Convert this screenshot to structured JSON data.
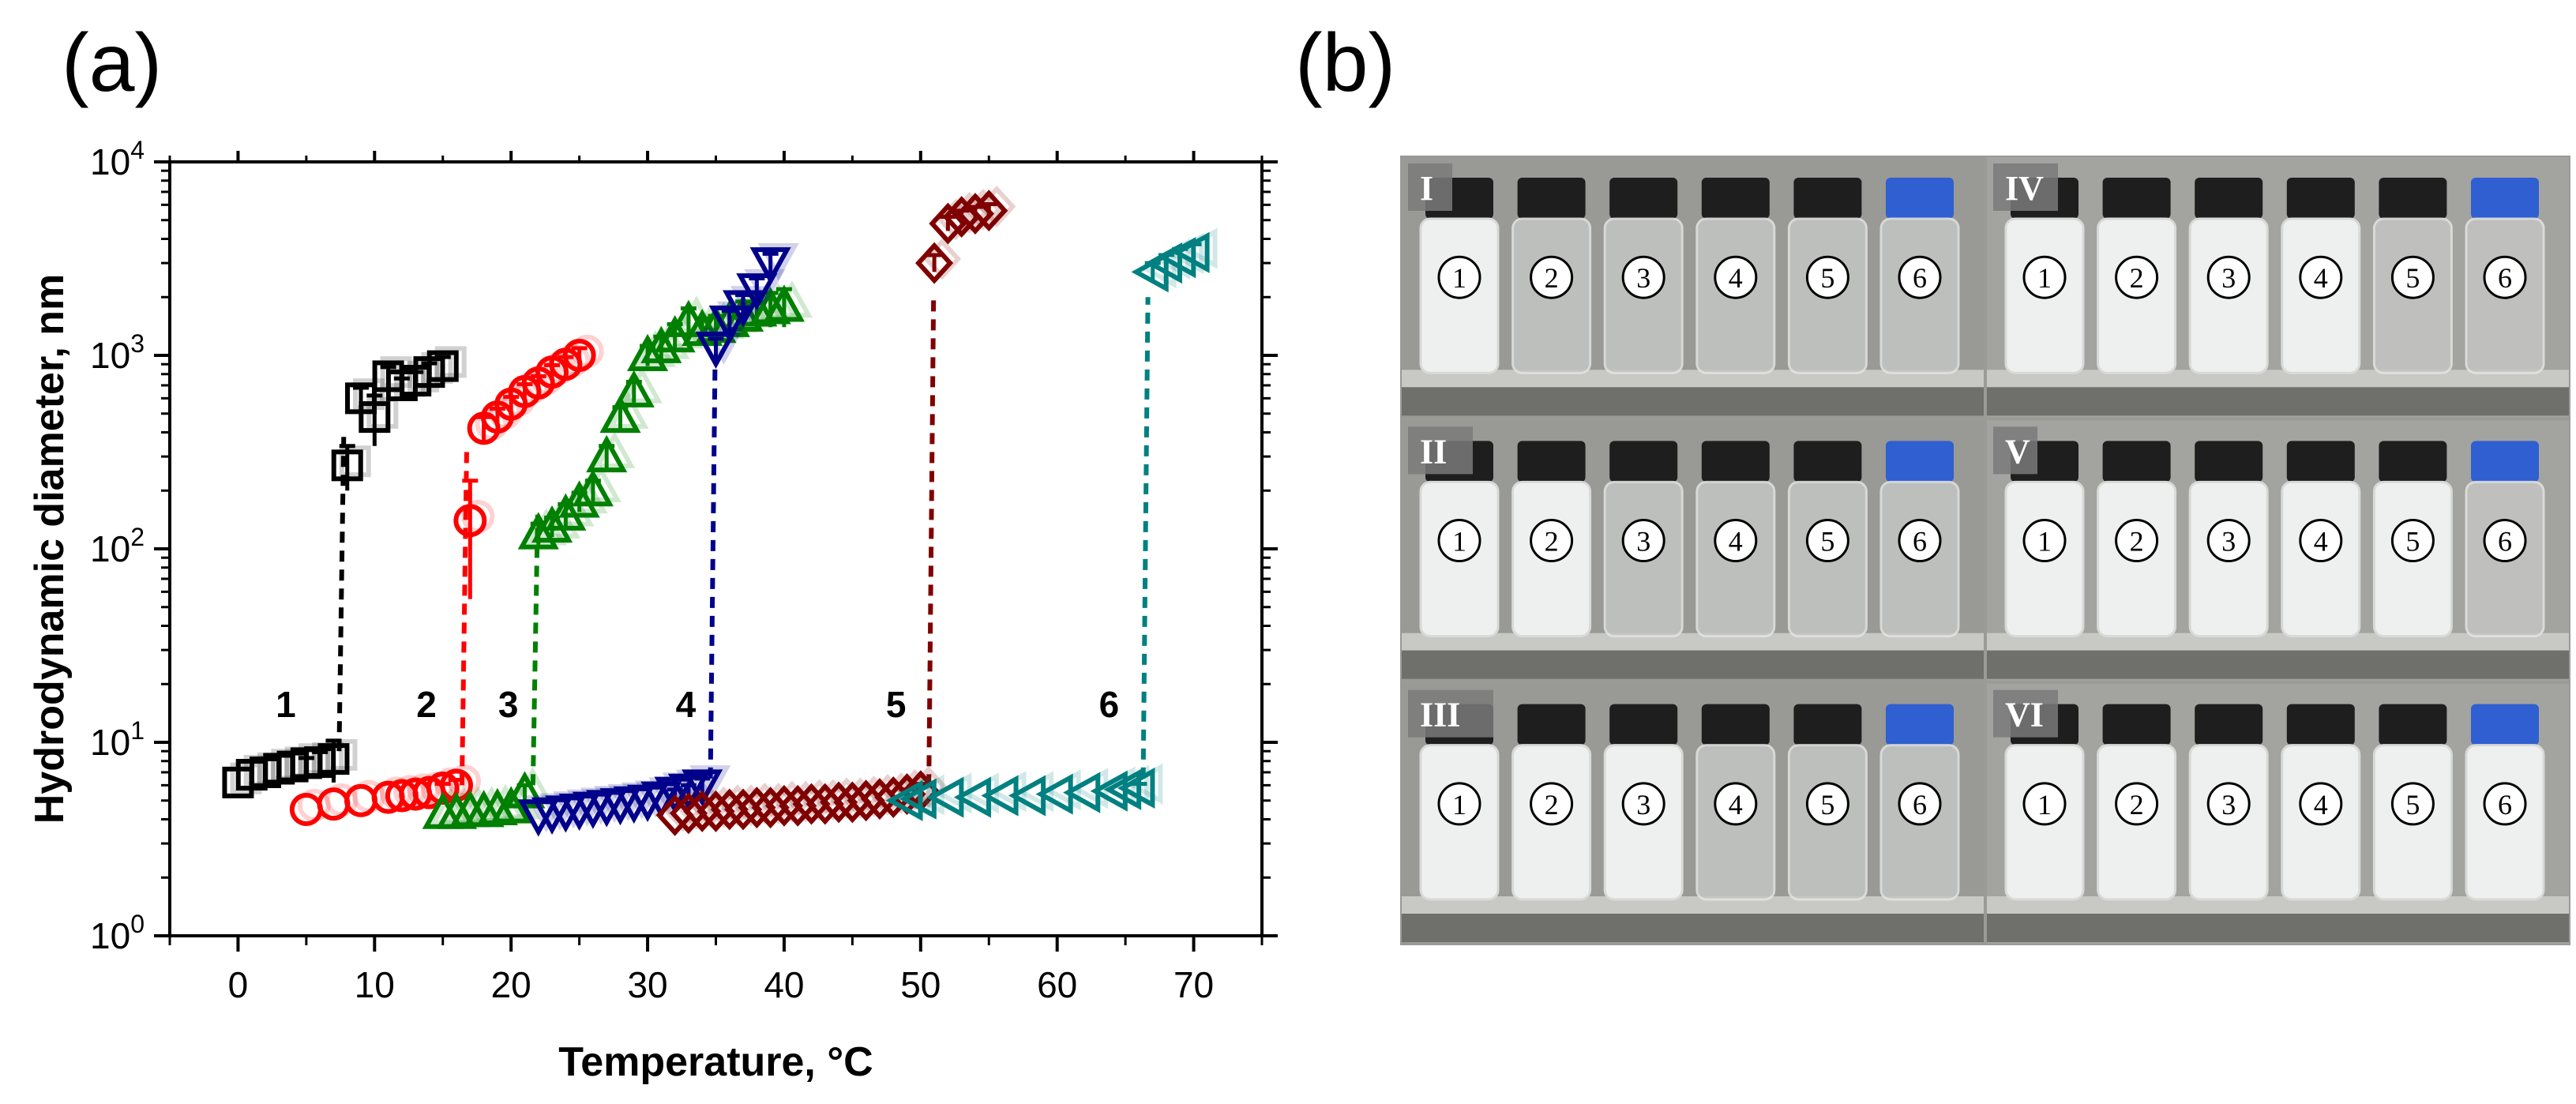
{
  "panel_a": {
    "label": "(a)",
    "chart_data": {
      "type": "scatter",
      "title": "",
      "xlabel": "Temperature, °C",
      "ylabel": "Hydrodynamic diameter, nm",
      "xlim": [
        -5,
        75
      ],
      "x_ticks": [
        0,
        10,
        20,
        30,
        40,
        50,
        60,
        70
      ],
      "y_scale": "log",
      "ylim": [
        1,
        10000
      ],
      "y_ticks": [
        {
          "value": 1,
          "base": "10",
          "exp": "0"
        },
        {
          "value": 10,
          "base": "10",
          "exp": "1"
        },
        {
          "value": 100,
          "base": "10",
          "exp": "2"
        },
        {
          "value": 1000,
          "base": "10",
          "exp": "3"
        },
        {
          "value": 10000,
          "base": "10",
          "exp": "4"
        }
      ],
      "series": [
        {
          "name": "1",
          "color": "#000000",
          "marker": "square",
          "label_at": [
            3.5,
            13.5
          ],
          "x": [
            0,
            1,
            2,
            3,
            4,
            5,
            6,
            7,
            8,
            9,
            10,
            11,
            12,
            13,
            14,
            15
          ],
          "y": [
            6.2,
            6.8,
            7.0,
            7.3,
            7.5,
            7.8,
            7.9,
            8.2,
            270,
            600,
            480,
            780,
            700,
            740,
            820,
            880
          ],
          "err": [
            0,
            0,
            0,
            0,
            0,
            0.5,
            1.0,
            2.0,
            70,
            80,
            140,
            90,
            60,
            80,
            90,
            100
          ],
          "jump": [
            7.4,
            9,
            400
          ]
        },
        {
          "name": "2",
          "color": "#ff0000",
          "marker": "circle",
          "label_at": [
            13.8,
            13.5
          ],
          "x": [
            5,
            7,
            9,
            11,
            12,
            13,
            14,
            15,
            16,
            17,
            18,
            19,
            20,
            21,
            22,
            23,
            24,
            25
          ],
          "y": [
            4.5,
            4.8,
            5.0,
            5.2,
            5.3,
            5.4,
            5.5,
            5.8,
            6.0,
            140,
            420,
            480,
            560,
            650,
            720,
            820,
            900,
            1000
          ],
          "err": [
            0,
            0,
            0,
            0,
            0,
            0,
            0,
            0.3,
            0.4,
            85,
            60,
            50,
            50,
            60,
            60,
            70,
            80,
            90
          ],
          "jump": [
            16.4,
            6,
            320
          ]
        },
        {
          "name": "3",
          "color": "#008000",
          "marker": "triangle-up",
          "label_at": [
            19.8,
            13.5
          ],
          "x": [
            15,
            16,
            17,
            18,
            19,
            20,
            21,
            22,
            23,
            24,
            25,
            26,
            27,
            28,
            29,
            30,
            31,
            32,
            33,
            34,
            35,
            36,
            37,
            38,
            39,
            40
          ],
          "y": [
            4.3,
            4.3,
            4.4,
            4.4,
            4.5,
            4.6,
            5.5,
            120,
            130,
            150,
            175,
            200,
            300,
            480,
            650,
            1000,
            1100,
            1250,
            1500,
            1350,
            1400,
            1500,
            1600,
            1700,
            1750,
            1800
          ],
          "err": [
            0,
            0,
            0,
            0,
            0,
            0,
            0.5,
            15,
            15,
            20,
            20,
            25,
            40,
            60,
            80,
            120,
            150,
            200,
            250,
            200,
            200,
            250,
            300,
            350,
            350,
            400
          ],
          "jump": [
            21.6,
            6,
            150
          ]
        },
        {
          "name": "4",
          "color": "#00008b",
          "marker": "triangle-down",
          "label_at": [
            32.8,
            13.5
          ],
          "x": [
            22,
            23,
            24,
            25,
            26,
            27,
            28,
            29,
            30,
            31,
            32,
            33,
            34,
            35,
            36,
            37,
            38,
            39
          ],
          "y": [
            4.2,
            4.3,
            4.4,
            4.5,
            4.6,
            4.7,
            4.8,
            4.9,
            5.0,
            5.2,
            5.5,
            5.7,
            6.0,
            1100,
            1500,
            1800,
            2200,
            3000
          ],
          "err": [
            0,
            0,
            0,
            0,
            0,
            0,
            0,
            0,
            0,
            0,
            0.2,
            0.3,
            0.5,
            120,
            200,
            250,
            300,
            350
          ],
          "jump": [
            34.6,
            6.5,
            1000
          ]
        },
        {
          "name": "5",
          "color": "#800000",
          "marker": "diamond",
          "label_at": [
            48.2,
            13.5
          ],
          "x": [
            32,
            33,
            34,
            35,
            36,
            37,
            38,
            39,
            40,
            41,
            42,
            43,
            44,
            45,
            46,
            47,
            48,
            49,
            50,
            51,
            52,
            53,
            54,
            55
          ],
          "y": [
            4.2,
            4.3,
            4.4,
            4.4,
            4.5,
            4.5,
            4.6,
            4.6,
            4.7,
            4.7,
            4.8,
            4.8,
            4.9,
            4.9,
            5.0,
            5.1,
            5.2,
            5.4,
            5.6,
            3000,
            4800,
            5200,
            5400,
            5600
          ],
          "err": [
            0,
            0,
            0,
            0,
            0,
            0,
            0,
            0,
            0,
            0,
            0,
            0,
            0,
            0,
            0,
            0,
            0,
            0.3,
            0.5,
            300,
            400,
            400,
            450,
            450
          ],
          "jump": [
            50.6,
            6,
            2000
          ]
        },
        {
          "name": "6",
          "color": "#008080",
          "marker": "triangle-left",
          "label_at": [
            63.8,
            13.5
          ],
          "x": [
            49,
            50,
            52,
            54,
            56,
            58,
            60,
            62,
            64,
            65,
            66,
            67,
            68,
            69,
            70
          ],
          "y": [
            5.0,
            5.1,
            5.2,
            5.2,
            5.3,
            5.3,
            5.4,
            5.5,
            5.6,
            5.7,
            5.8,
            2700,
            3000,
            3200,
            3400
          ],
          "err": [
            0,
            0,
            0,
            0,
            0,
            0,
            0,
            0,
            0,
            0,
            0.3,
            300,
            300,
            350,
            350
          ],
          "jump": [
            66.3,
            6.5,
            2000
          ]
        }
      ]
    }
  },
  "panel_b": {
    "label": "(b)",
    "photos": [
      {
        "roman": "I",
        "turbid": [
          1
        ],
        "vials": [
          "1",
          "2",
          "3",
          "4",
          "5",
          "6"
        ]
      },
      {
        "roman": "IV",
        "turbid": [
          1,
          2,
          3,
          4
        ],
        "vials": [
          "1",
          "2",
          "3",
          "4",
          "5",
          "6"
        ]
      },
      {
        "roman": "II",
        "turbid": [
          1,
          2
        ],
        "vials": [
          "1",
          "2",
          "3",
          "4",
          "5",
          "6"
        ]
      },
      {
        "roman": "V",
        "turbid": [
          1,
          2,
          3,
          4,
          5
        ],
        "vials": [
          "1",
          "2",
          "3",
          "4",
          "5",
          "6"
        ]
      },
      {
        "roman": "III",
        "turbid": [
          1,
          2,
          3
        ],
        "vials": [
          "1",
          "2",
          "3",
          "4",
          "5",
          "6"
        ]
      },
      {
        "roman": "VI",
        "turbid": [
          1,
          2,
          3,
          4,
          5,
          6
        ],
        "vials": [
          "1",
          "2",
          "3",
          "4",
          "5",
          "6"
        ]
      }
    ]
  }
}
